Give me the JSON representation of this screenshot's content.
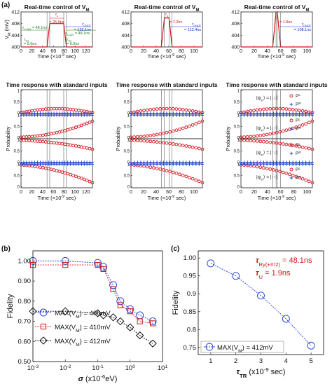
{
  "panel_labels": {
    "a": "(a)",
    "b": "(b)",
    "c": "(c)"
  },
  "colors": {
    "red": "#d3141c",
    "blue": "#1f3fd8",
    "black": "#111111",
    "green": "#1e7a1e",
    "gray": "#555555"
  },
  "panel_a": {
    "control_title": "Real-time control of V",
    "control_title_sub": "M",
    "response_title": "Time response with standard inputs",
    "vm_ylabel": "V",
    "vm_ylabel_sub": "M",
    "vm_ylabel_unit": " (mV)",
    "time_xlabel": "Time (×10",
    "time_xlabel_exp": "-9",
    "time_xlabel_unit": " sec)",
    "prob_ylabel": "Probability",
    "legend_pl": "P",
    "legend_pl_sup": "L",
    "legend_pl_sub": "↑",
    "legend_pr": "P",
    "legend_pr_sup": "R",
    "legend_pr_sub": "↑",
    "psi_labels": [
      "|ψ",
      "in",
      "⟩ = |↓↓⟩",
      "⟩ = |↓↑⟩",
      "⟩ = |↑↓⟩",
      "⟩ = |↑↑⟩"
    ],
    "annotations": {
      "col1": [
        "τ",
        "u",
        " = 25.9ns",
        "τ",
        "CNOT",
        " = 132.1ns",
        "τ",
        "1-d(2)",
        " = 48.1ns",
        "τ",
        "1-d(2)",
        " = 48.1ns",
        "τ",
        "TR",
        " = 5.0ns",
        "τ",
        "TR",
        " = 5.0ns"
      ],
      "col2": [
        "τ",
        "u",
        " = 7.2ns",
        "τ",
        "CNOT",
        " = 113.4ns"
      ],
      "col3": [
        "τ",
        "u",
        " = 1.9ns",
        "τ",
        "CNOT",
        " = 108.1ns"
      ]
    },
    "chart_data": [
      {
        "type": "line",
        "id": "vm_408",
        "ylim": [
          400,
          412
        ],
        "yticks": [
          "400",
          "404",
          "408",
          "412"
        ],
        "xlim": [
          0,
          132.1
        ],
        "xticks": [
          "0",
          "20",
          "40",
          "60",
          "80",
          "100",
          "120"
        ],
        "series": [
          {
            "values": [
              [
                0,
                400
              ],
              [
                48.1,
                400
              ],
              [
                53.1,
                408
              ],
              [
                79.0,
                408
              ],
              [
                84.0,
                400
              ],
              [
                132.1,
                400
              ]
            ]
          }
        ]
      },
      {
        "type": "line",
        "id": "vm_410",
        "ylim": [
          400,
          412
        ],
        "yticks": [
          "400",
          "404",
          "408",
          "412"
        ],
        "xlim": [
          0,
          113.4
        ],
        "xticks": [
          "0",
          "20",
          "40",
          "60",
          "80",
          "100"
        ],
        "series": [
          {
            "values": [
              [
                0,
                400
              ],
              [
                48.1,
                400
              ],
              [
                53.1,
                410
              ],
              [
                60.3,
                410
              ],
              [
                65.3,
                400
              ],
              [
                113.4,
                400
              ]
            ]
          }
        ]
      },
      {
        "type": "line",
        "id": "vm_412",
        "ylim": [
          400,
          412
        ],
        "yticks": [
          "400",
          "404",
          "408",
          "412"
        ],
        "xlim": [
          0,
          108.1
        ],
        "xticks": [
          "0",
          "20",
          "40",
          "60",
          "80",
          "100"
        ],
        "series": [
          {
            "values": [
              [
                0,
                400
              ],
              [
                48.1,
                400
              ],
              [
                53.1,
                412
              ],
              [
                55.0,
                412
              ],
              [
                60.0,
                400
              ],
              [
                108.1,
                400
              ]
            ]
          }
        ]
      }
    ]
  },
  "panel_b": {
    "ylabel": "Fidelity",
    "xlabel": "σ",
    "xlabel_unit": " (x10",
    "xlabel_exp": "-6",
    "xlabel_tail": "eV)",
    "yticks": [
      "0.50",
      "0.60",
      "0.70",
      "0.80",
      "0.90",
      "1.00"
    ],
    "xtick_base": [
      "10",
      "10",
      "10",
      "10",
      "10"
    ],
    "xtick_exp": [
      "-3",
      "-2",
      "-1",
      "0",
      "1"
    ],
    "legend": [
      "MAX(V",
      "M",
      ") = 408mV",
      ") = 410mV",
      ") = 412mV"
    ],
    "chart_data": {
      "type": "scatter",
      "x": [
        0.001,
        0.01,
        0.1,
        0.15,
        0.3,
        0.5,
        1,
        2,
        5
      ],
      "xscale": "log",
      "xlim": [
        0.001,
        10
      ],
      "ylim": [
        0.5,
        1.05
      ],
      "series": [
        {
          "name": "MAX(V_M) = 408mV",
          "color": "#1f3fd8",
          "marker": "circle",
          "values": [
            1.0,
            1.0,
            0.99,
            0.97,
            0.88,
            0.8,
            0.76,
            0.73,
            0.7
          ]
        },
        {
          "name": "MAX(V_M) = 410mV",
          "color": "#d3141c",
          "marker": "square",
          "values": [
            0.98,
            0.98,
            0.98,
            0.96,
            0.86,
            0.78,
            0.75,
            0.7,
            0.69
          ]
        },
        {
          "name": "MAX(V_M) = 412mV",
          "color": "#111111",
          "marker": "diamond",
          "values": [
            0.75,
            0.75,
            0.74,
            0.73,
            0.72,
            0.7,
            0.67,
            0.63,
            0.59
          ]
        }
      ]
    }
  },
  "panel_c": {
    "ylabel": "Fidelity",
    "xlabel": "τ",
    "xlabel_sub": "TR",
    "xlabel_unit": " (x10",
    "xlabel_exp": "-9",
    "xlabel_tail": " sec)",
    "yticks": [
      "0.75",
      "0.8",
      "0.85",
      "0.9",
      "0.95",
      "1.00"
    ],
    "xticks": [
      "1",
      "2",
      "3",
      "4",
      "5"
    ],
    "ann1": [
      "τ",
      "Ry(±π/2)",
      " = 48.1ns"
    ],
    "ann2": [
      "τ",
      "U",
      " = 1.9ns"
    ],
    "legend": [
      "MAX(V",
      "M",
      ") = 412mV"
    ],
    "chart_data": {
      "type": "line",
      "x": [
        1,
        2,
        3,
        4,
        5
      ],
      "xlim": [
        0.5,
        5.5
      ],
      "ylim": [
        0.73,
        1.02
      ],
      "series": [
        {
          "name": "MAX(V_M) = 412mV",
          "color": "#1f3fd8",
          "marker": "circle",
          "values": [
            0.985,
            0.95,
            0.895,
            0.83,
            0.755
          ]
        }
      ]
    }
  }
}
